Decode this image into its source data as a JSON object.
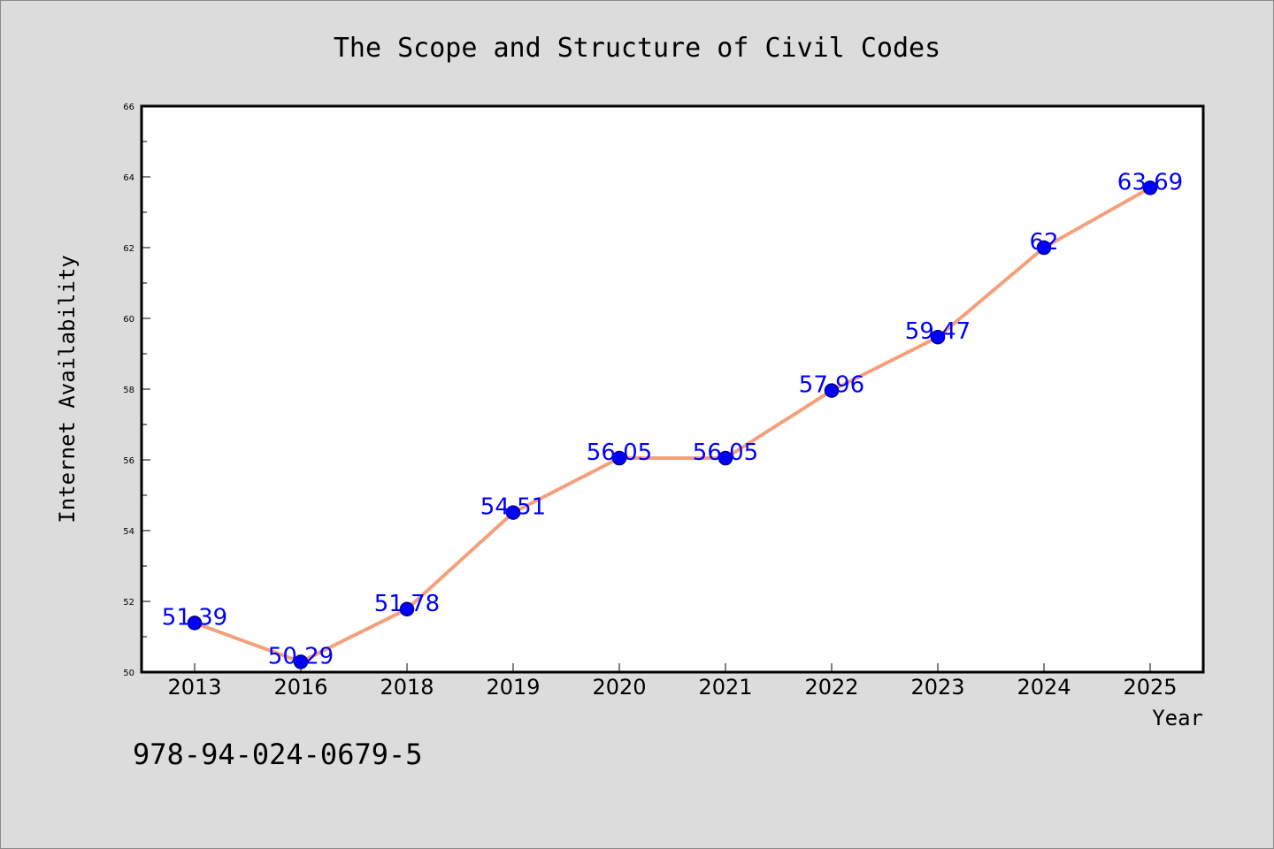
{
  "chart_data": {
    "type": "line",
    "title": "The Scope and Structure of Civil Codes",
    "xlabel": "Year",
    "ylabel": "Internet Availability",
    "categories": [
      "2013",
      "2016",
      "2018",
      "2019",
      "2020",
      "2021",
      "2022",
      "2023",
      "2024",
      "2025"
    ],
    "values": [
      51.39,
      50.29,
      51.78,
      54.51,
      56.05,
      56.05,
      57.96,
      59.47,
      62,
      63.69
    ],
    "data_labels": [
      "51.39",
      "50.29",
      "51.78",
      "54.51",
      "56.05",
      "56.05",
      "57.96",
      "59.47",
      "62",
      "63.69"
    ],
    "ylim": [
      50,
      66
    ],
    "yticks": [
      "50",
      "52",
      "54",
      "56",
      "58",
      "60",
      "62",
      "64",
      "66"
    ],
    "grid": false,
    "legend": "none",
    "colors": {
      "line": "#f4a07c",
      "marker": "#0000ff",
      "marker_edge": "#00008b",
      "label": "#0000ff",
      "background": "#dcdcdc",
      "plot_background": "#ffffff"
    }
  },
  "footer": {
    "isbn": "978-94-024-0679-5"
  }
}
